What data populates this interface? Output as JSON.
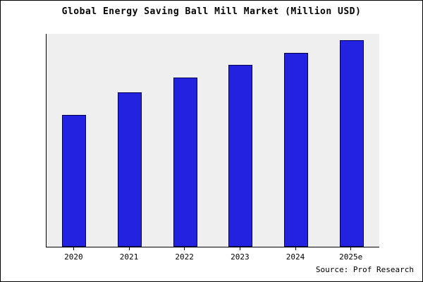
{
  "title": "Global Energy Saving Ball Mill Market (Million USD)",
  "source": "Source: Prof Research",
  "colors": {
    "bar_fill": "#2222e0",
    "bar_border": "#00004d",
    "plot_background": "#efefef",
    "frame_border": "#000000"
  },
  "chart_data": {
    "type": "bar",
    "title": "Global Energy Saving Ball Mill Market (Million USD)",
    "categories": [
      "2020",
      "2021",
      "2022",
      "2023",
      "2024",
      "2025e"
    ],
    "values": [
      63,
      74,
      81,
      87,
      93,
      99
    ],
    "xlabel": "",
    "ylabel": "",
    "ylim": [
      0,
      102
    ],
    "grid": false,
    "legend": false,
    "legend_position": "none",
    "notes": "No y-axis tick labels shown; values estimated from relative bar heights"
  }
}
